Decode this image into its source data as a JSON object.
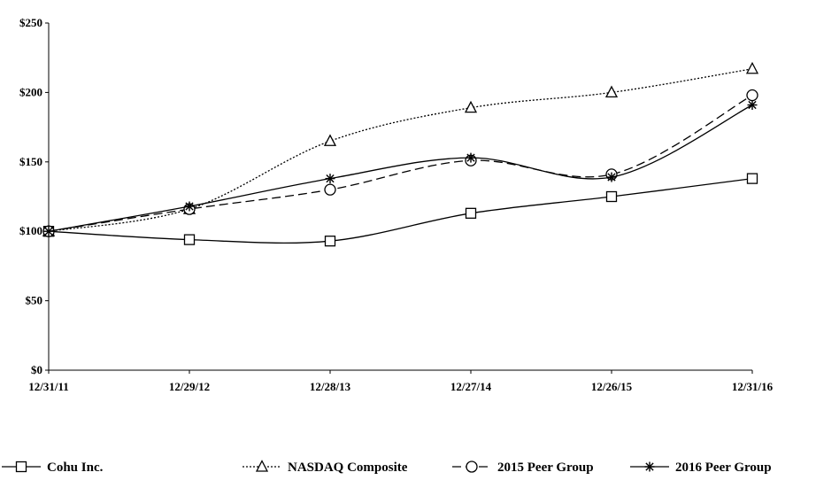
{
  "chart_data": {
    "type": "line",
    "categories": [
      "12/31/11",
      "12/29/12",
      "12/28/13",
      "12/27/14",
      "12/26/15",
      "12/31/16"
    ],
    "y_tick_labels": [
      "$0",
      "$50",
      "$100",
      "$150",
      "$200",
      "$250"
    ],
    "y_ticks": [
      0,
      50,
      100,
      150,
      200,
      250
    ],
    "ylim": [
      0,
      250
    ],
    "grid": false,
    "legend_position": "bottom",
    "series": [
      {
        "name": "Cohu Inc.",
        "values": [
          100,
          94,
          93,
          113,
          125,
          138
        ],
        "marker": "square",
        "dash": "solid",
        "color": "#000000"
      },
      {
        "name": "NASDAQ Composite",
        "values": [
          100,
          116,
          165,
          189,
          200,
          217
        ],
        "marker": "triangle",
        "dash": "dotted",
        "color": "#000000"
      },
      {
        "name": "2015 Peer Group",
        "values": [
          100,
          116,
          130,
          151,
          141,
          198
        ],
        "marker": "circle",
        "dash": "dashed",
        "color": "#000000"
      },
      {
        "name": "2016 Peer Group",
        "values": [
          100,
          118,
          138,
          153,
          139,
          191
        ],
        "marker": "star",
        "dash": "solid",
        "color": "#000000"
      }
    ]
  }
}
